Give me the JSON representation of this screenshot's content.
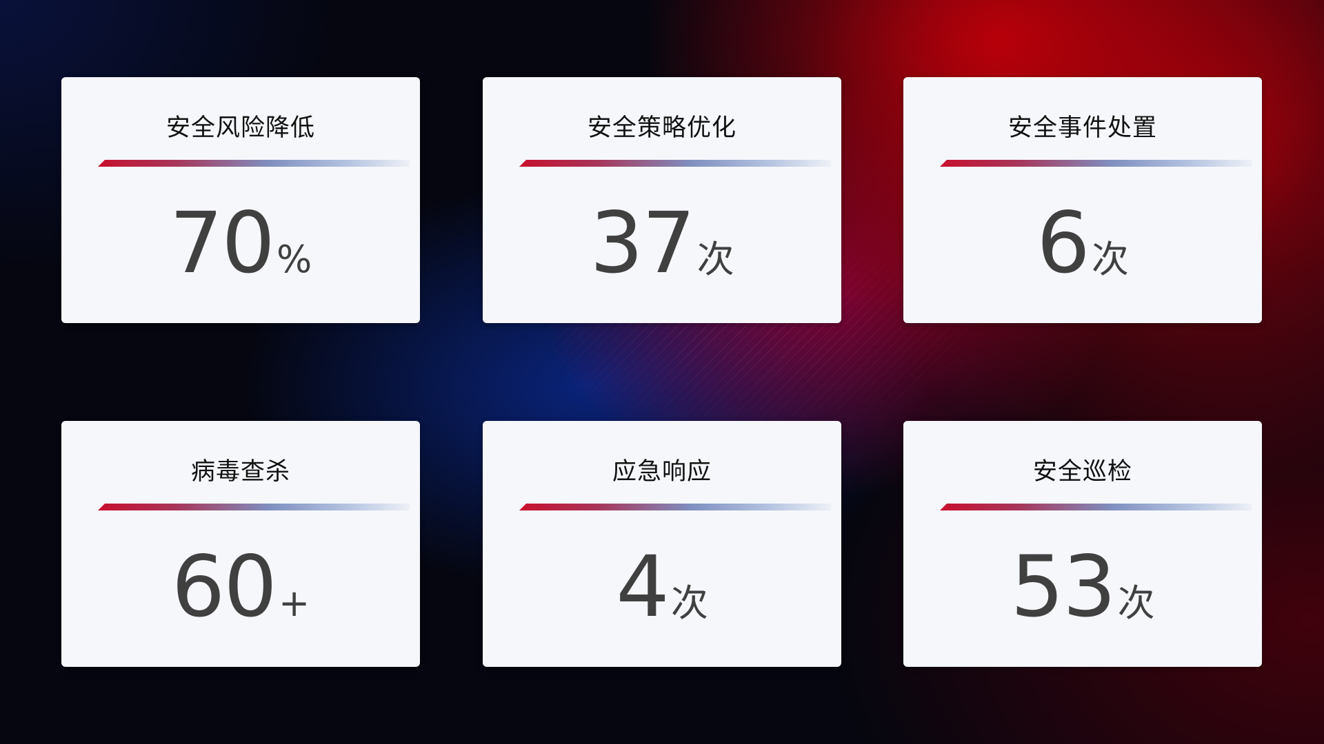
{
  "cards": [
    {
      "title": "安全风险降低",
      "value": "70",
      "unit": "%"
    },
    {
      "title": "安全策略优化",
      "value": "37",
      "unit": "次"
    },
    {
      "title": "安全事件处置",
      "value": "6",
      "unit": "次"
    },
    {
      "title": "病毒查杀",
      "value": "60",
      "unit": "+"
    },
    {
      "title": "应急响应",
      "value": "4",
      "unit": "次"
    },
    {
      "title": "安全巡检",
      "value": "53",
      "unit": "次"
    }
  ],
  "colors": {
    "accent_red": "#c8102e",
    "accent_blue": "#7f8fbf",
    "card_bg": "#f5f7fb",
    "value_text": "#404040"
  }
}
